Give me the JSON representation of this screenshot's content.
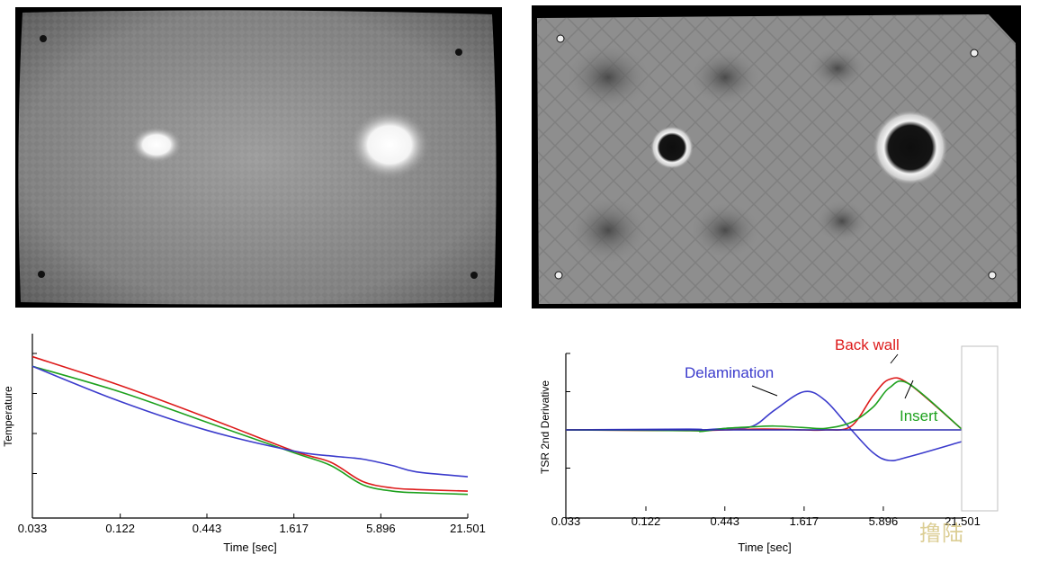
{
  "images": {
    "left": {
      "label": ""
    },
    "right": {
      "label": ""
    }
  },
  "chart_data": [
    {
      "type": "line",
      "title": "",
      "xlabel": "Time  [sec]",
      "ylabel": "Temperature",
      "x_scale": "log",
      "x_ticks": [
        "0.033",
        "0.122",
        "0.443",
        "1.617",
        "5.896",
        "21.501"
      ],
      "xlim": [
        0.033,
        21.501
      ],
      "ylim": [
        0,
        100
      ],
      "grid": false,
      "series": [
        {
          "color": "#dd1a1a",
          "x": [
            0.033,
            0.122,
            0.443,
            1.617,
            2.8,
            4.5,
            7.0,
            10.0,
            21.501
          ],
          "y": [
            98,
            80,
            60,
            39,
            32,
            20,
            16,
            15,
            14
          ]
        },
        {
          "color": "#1ea11e",
          "x": [
            0.033,
            0.122,
            0.443,
            1.617,
            2.8,
            4.5,
            7.0,
            10.0,
            21.501
          ],
          "y": [
            92,
            76,
            57,
            38,
            30,
            18,
            14,
            13,
            12
          ]
        },
        {
          "color": "#3b3bcc",
          "x": [
            0.033,
            0.122,
            0.443,
            1.617,
            2.8,
            4.5,
            7.0,
            10.0,
            21.501
          ],
          "y": [
            92,
            70,
            52,
            39,
            36,
            34,
            30,
            26,
            23
          ]
        }
      ]
    },
    {
      "type": "line",
      "title": "",
      "xlabel": "Time  [sec]",
      "ylabel": "TSR 2nd Derivative",
      "x_scale": "log",
      "x_ticks": [
        "0.033",
        "0.122",
        "0.443",
        "1.617",
        "5.896",
        "21.501"
      ],
      "xlim": [
        0.033,
        21.501
      ],
      "ylim": [
        -100,
        100
      ],
      "grid": false,
      "annotations": [
        {
          "text": "Back wall",
          "color": "#dd1a1a"
        },
        {
          "text": "Delamination",
          "color": "#3b3bcc"
        },
        {
          "text": "Insert",
          "color": "#1ea11e"
        }
      ],
      "series": [
        {
          "name": "Delamination",
          "color": "#3b3bcc",
          "x": [
            0.033,
            0.25,
            0.3,
            0.45,
            0.7,
            1.0,
            1.617,
            2.3,
            3.5,
            5.0,
            6.5,
            9.0,
            21.501
          ],
          "y": [
            0,
            1,
            0,
            2,
            5,
            26,
            50,
            38,
            0,
            -30,
            -40,
            -35,
            -15
          ]
        },
        {
          "name": "Back wall",
          "color": "#dd1a1a",
          "x": [
            0.033,
            0.25,
            0.3,
            0.45,
            0.7,
            1.0,
            1.617,
            2.3,
            3.5,
            5.0,
            6.5,
            9.0,
            21.501
          ],
          "y": [
            0,
            -1,
            -1,
            0,
            1,
            1,
            0,
            0,
            5,
            45,
            66,
            60,
            0
          ]
        },
        {
          "name": "Insert",
          "color": "#1ea11e",
          "x": [
            0.033,
            0.25,
            0.3,
            0.45,
            0.7,
            1.0,
            1.617,
            2.3,
            3.5,
            5.0,
            6.5,
            9.0,
            21.501
          ],
          "y": [
            0,
            -1,
            -2,
            2,
            4,
            5,
            3,
            2,
            10,
            30,
            55,
            60,
            0
          ]
        },
        {
          "name": "",
          "color": "#2a2ab0",
          "x": [
            0.033,
            21.501
          ],
          "y": [
            0,
            0
          ]
        }
      ]
    }
  ],
  "watermark": "撸陆"
}
